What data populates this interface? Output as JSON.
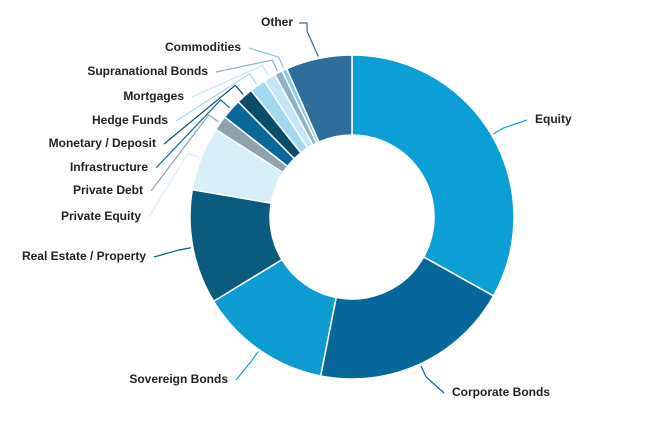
{
  "chart_data": {
    "type": "donut",
    "categories": [
      "Equity",
      "Corporate Bonds",
      "Sovereign Bonds",
      "Real Estate / Property",
      "Private Equity",
      "Private Debt",
      "Infrastructure",
      "Monetary / Deposit",
      "Hedge Funds",
      "Mortgages",
      "Supranational Bonds",
      "Commodities",
      "Other"
    ],
    "values": [
      33.1,
      20,
      13.2,
      11.4,
      6.4,
      1.5,
      2,
      1.7,
      1.6,
      1.2,
      0.8,
      0.5,
      6.6
    ],
    "colors": [
      "#0b9fd5",
      "#07679a",
      "#0e9bd2",
      "#0b5b7e",
      "#d8eef8",
      "#8fa2ac",
      "#0a6898",
      "#0a4d68",
      "#a3d8ef",
      "#c5e6f5",
      "#8fb3c6",
      "#8dc8e4",
      "#2f6d9b"
    ]
  }
}
